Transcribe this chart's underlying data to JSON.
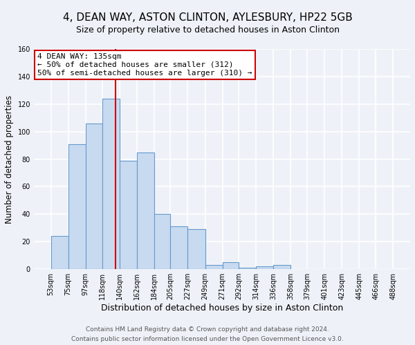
{
  "title": "4, DEAN WAY, ASTON CLINTON, AYLESBURY, HP22 5GB",
  "subtitle": "Size of property relative to detached houses in Aston Clinton",
  "xlabel": "Distribution of detached houses by size in Aston Clinton",
  "ylabel": "Number of detached properties",
  "bin_edges": [
    53,
    75,
    97,
    118,
    140,
    162,
    184,
    205,
    227,
    249,
    271,
    292,
    314,
    336,
    358,
    379,
    401,
    423,
    445,
    466,
    488
  ],
  "bar_heights": [
    24,
    91,
    106,
    124,
    79,
    85,
    40,
    31,
    29,
    3,
    5,
    1,
    2,
    3,
    0,
    0,
    0,
    0,
    0,
    0
  ],
  "bar_color": "#c8daf0",
  "bar_edge_color": "#6699cc",
  "vline_x": 135,
  "vline_color": "#cc0000",
  "ylim": [
    0,
    160
  ],
  "yticks": [
    0,
    20,
    40,
    60,
    80,
    100,
    120,
    140,
    160
  ],
  "annotation_title": "4 DEAN WAY: 135sqm",
  "annotation_line1": "← 50% of detached houses are smaller (312)",
  "annotation_line2": "50% of semi-detached houses are larger (310) →",
  "footnote1": "Contains HM Land Registry data © Crown copyright and database right 2024.",
  "footnote2": "Contains public sector information licensed under the Open Government Licence v3.0.",
  "background_color": "#eef2f8",
  "grid_color": "#ffffff",
  "title_fontsize": 11,
  "subtitle_fontsize": 9,
  "xlabel_fontsize": 9,
  "ylabel_fontsize": 8.5,
  "tick_fontsize": 7,
  "annotation_fontsize": 8,
  "footnote_fontsize": 6.5
}
